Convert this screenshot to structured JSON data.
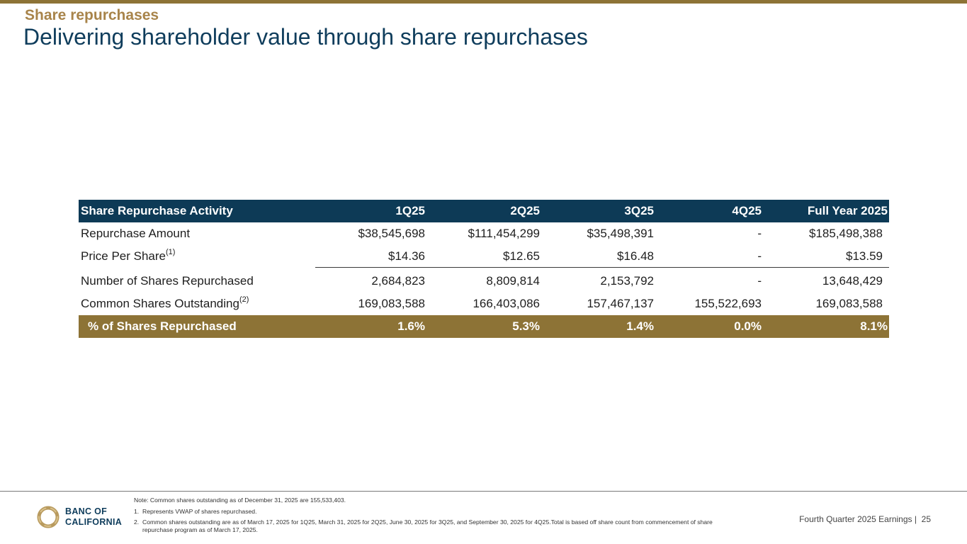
{
  "header": {
    "section": "Share repurchases",
    "title": "Delivering shareholder value through share repurchases"
  },
  "table": {
    "columns": [
      "Share Repurchase Activity",
      "1Q25",
      "2Q25",
      "3Q25",
      "4Q25",
      "Full Year 2025"
    ],
    "rows": [
      {
        "label": "Repurchase Amount",
        "sup": "",
        "values": [
          "$38,545,698",
          "$111,454,299",
          "$35,498,391",
          "-",
          "$185,498,388"
        ]
      },
      {
        "label": "Price Per Share",
        "sup": "(1)",
        "values": [
          "$14.36",
          "$12.65",
          "$16.48",
          "-",
          "$13.59"
        ]
      },
      {
        "label": "Number of Shares Repurchased",
        "sup": "",
        "values": [
          "2,684,823",
          "8,809,814",
          "2,153,792",
          "-",
          "13,648,429"
        ]
      },
      {
        "label": "Common Shares Outstanding",
        "sup": "(2)",
        "values": [
          "169,083,588",
          "166,403,086",
          "157,467,137",
          "155,522,693",
          "169,083,588"
        ]
      }
    ],
    "total": {
      "label": "% of Shares Repurchased",
      "values": [
        "1.6%",
        "5.3%",
        "1.4%",
        "0.0%",
        "8.1%"
      ]
    }
  },
  "footer": {
    "logo_line1": "BANC OF",
    "logo_line2": "CALIFORNIA",
    "note": "Note: Common shares outstanding as of December 31, 2025 are 155,533,403.",
    "footnotes": [
      {
        "num": "1.",
        "text": "Represents VWAP of shares repurchased."
      },
      {
        "num": "2.",
        "text": "Common shares outstanding are as of March 17, 2025 for 1Q25, March 31, 2025 for 2Q25, June 30, 2025 for 3Q25, and September 30, 2025 for 4Q25.Total is based off share count from commencement of share repurchase program as of March 17, 2025."
      }
    ],
    "page_label": "Fourth Quarter 2025 Earnings |",
    "page_number": "25"
  },
  "colors": {
    "navy": "#0d3a56",
    "gold": "#8d7336",
    "title_gold": "#a8844a"
  }
}
